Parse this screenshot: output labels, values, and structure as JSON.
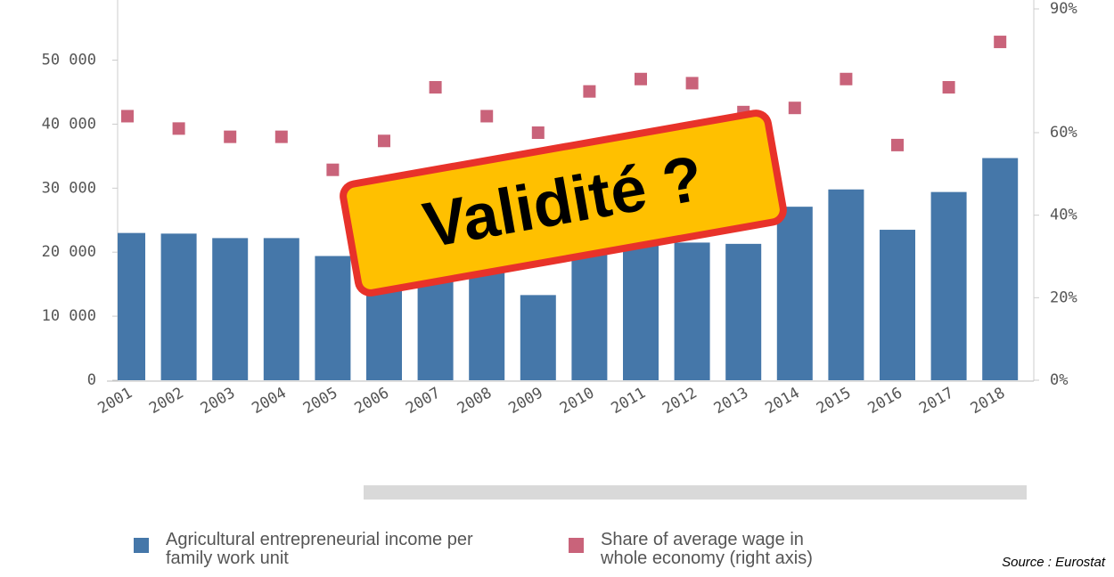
{
  "chart_data": {
    "type": "bar",
    "categories": [
      "2001",
      "2002",
      "2003",
      "2004",
      "2005",
      "2006",
      "2007",
      "2008",
      "2009",
      "2010",
      "2011",
      "2012",
      "2013",
      "2014",
      "2015",
      "2016",
      "2017",
      "2018"
    ],
    "series": [
      {
        "name": "Agricultural entrepreneurial income per family work unit",
        "color": "#4577a9",
        "type": "bar",
        "values": [
          23000,
          22900,
          22200,
          22200,
          19400,
          19000,
          22000,
          19000,
          13300,
          20000,
          21000,
          21500,
          21300,
          27100,
          29800,
          23500,
          29400,
          34700
        ]
      },
      {
        "name": "Share of average wage in whole economy (right axis)",
        "color": "#c9637a",
        "type": "scatter",
        "axis": "y2",
        "values": [
          64,
          61,
          59,
          59,
          51,
          58,
          71,
          64,
          60,
          70,
          73,
          72,
          65,
          66,
          73,
          57,
          71,
          82
        ]
      }
    ],
    "ylim": [
      0,
      58000
    ],
    "yticks": [
      0,
      {
        "value": 10000,
        "label": "10 000"
      },
      {
        "value": 20000,
        "label": "20 000"
      },
      {
        "value": 30000,
        "label": "30 000"
      },
      {
        "value": 40000,
        "label": "40 000"
      },
      {
        "value": 50000,
        "label": "50 000"
      }
    ],
    "y2lim": [
      0,
      90
    ],
    "y2ticks": [
      {
        "value": 0,
        "label": "0%"
      },
      {
        "value": 20,
        "label": "20%"
      },
      {
        "value": 40,
        "label": "40%"
      },
      {
        "value": 60,
        "label": "60%"
      },
      {
        "value": 90,
        "label": "90%"
      }
    ],
    "annotation": "Validité ?",
    "source": "Source : Eurostat"
  }
}
